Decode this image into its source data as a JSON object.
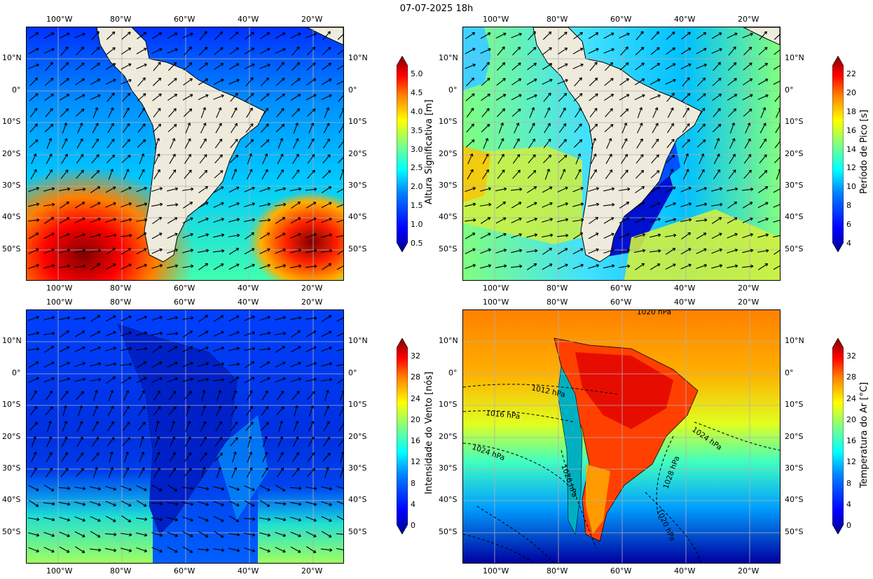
{
  "title": "07-07-2025 18h",
  "lon_ticks": [
    "100°W",
    "80°W",
    "60°W",
    "40°W",
    "20°W"
  ],
  "lat_ticks": [
    "10°N",
    "0°",
    "10°S",
    "20°S",
    "30°S",
    "40°S",
    "50°S"
  ],
  "panels": [
    {
      "id": "wave-height",
      "colorbar_label": "Altura Significativa [m]",
      "colorbar_ticks": [
        "0.5",
        "1.0",
        "1.5",
        "2.0",
        "2.5",
        "3.0",
        "3.5",
        "4.0",
        "4.5",
        "5.0"
      ]
    },
    {
      "id": "peak-period",
      "colorbar_label": "Período de Pico [s]",
      "colorbar_ticks": [
        "4",
        "6",
        "8",
        "10",
        "12",
        "14",
        "16",
        "18",
        "20",
        "22"
      ]
    },
    {
      "id": "wind-speed",
      "colorbar_label": "Intensidade do Vento [nós]",
      "colorbar_ticks": [
        "0",
        "4",
        "8",
        "12",
        "16",
        "20",
        "24",
        "28",
        "32"
      ]
    },
    {
      "id": "air-temperature",
      "colorbar_label": "Temperatura do Ar [°C]",
      "colorbar_ticks": [
        "0",
        "4",
        "8",
        "12",
        "16",
        "20",
        "24",
        "28",
        "32"
      ],
      "isobar_labels": [
        "1020 hPa",
        "1012 hPa",
        "1016 hPa",
        "1024 hPa",
        "1020 hPa",
        "1024 hPa",
        "1028 hPa",
        "1020 hPa"
      ]
    }
  ],
  "colors": {
    "land": "#efebdc",
    "jet": [
      "#00008f",
      "#0000ff",
      "#0080ff",
      "#00ffff",
      "#80ff80",
      "#ffff00",
      "#ff8000",
      "#ff0000",
      "#800000"
    ]
  }
}
